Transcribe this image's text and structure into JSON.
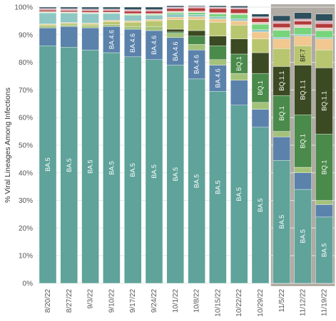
{
  "chart_data": {
    "type": "bar",
    "stacked": true,
    "title": "",
    "xlabel": "",
    "ylabel": "% Viral Lineages Among Infections",
    "ylim": [
      0,
      100
    ],
    "yticks": [
      "0%",
      "10%",
      "20%",
      "30%",
      "40%",
      "50%",
      "60%",
      "70%",
      "80%",
      "90%",
      "100%"
    ],
    "grid": true,
    "legend": "none",
    "categories": [
      "8/20/22",
      "8/27/22",
      "9/3/22",
      "9/10/22",
      "9/17/22",
      "9/24/22",
      "10/1/22",
      "10/8/22",
      "10/15/22",
      "10/22/22",
      "10/29/22",
      "11/5/22",
      "11/12/22",
      "11/19/22"
    ],
    "highlighted_categories": [
      "11/5/22",
      "11/12/22",
      "11/19/22"
    ],
    "highlight_color": "#b0aba4",
    "series": [
      {
        "name": "BA.5",
        "color": "#5fa39a",
        "text_color": "#ffffff",
        "values": [
          86.0,
          85.5,
          84.5,
          83.5,
          82.0,
          81.0,
          79.0,
          74.0,
          69.5,
          64.5,
          56.5,
          44.5,
          34.0,
          24.0
        ]
      },
      {
        "name": "BA.4.6",
        "color": "#5b82ab",
        "text_color": "#ffffff",
        "values": [
          6.5,
          7.5,
          8.0,
          9.5,
          10.0,
          10.5,
          10.0,
          10.5,
          9.5,
          9.0,
          6.5,
          8.5,
          6.0,
          4.5
        ]
      },
      {
        "name": "",
        "color": "#a4c27a",
        "text_color": "#ffffff",
        "values": [
          0.6,
          0.5,
          0.6,
          0.7,
          1.0,
          1.5,
          1.5,
          2.0,
          2.0,
          2.5,
          2.5,
          2.0,
          2.0,
          1.5
        ]
      },
      {
        "name": "BQ.1",
        "color": "#4a8a4a",
        "text_color": "#ffffff",
        "values": [
          0,
          0,
          0,
          0,
          0,
          0,
          0.5,
          3.0,
          5.0,
          7.0,
          10.5,
          13.0,
          19.0,
          24.0
        ]
      },
      {
        "name": "BQ.1.1",
        "color": "#3b4a22",
        "text_color": "#ffffff",
        "values": [
          0,
          0,
          0,
          0,
          0,
          0,
          1.0,
          2.0,
          3.5,
          5.5,
          7.5,
          10.5,
          18.0,
          24.0
        ]
      },
      {
        "name": "BF.7",
        "color": "#b9c670",
        "text_color": "#222222",
        "values": [
          0.5,
          0.6,
          0.7,
          1.0,
          1.5,
          2.0,
          3.5,
          4.0,
          5.0,
          5.0,
          5.0,
          6.5,
          7.0,
          6.5
        ]
      },
      {
        "name": "",
        "color": "#f0c890",
        "text_color": "#222222",
        "values": [
          0.3,
          0.3,
          0.4,
          0.5,
          0.5,
          0.5,
          0.8,
          1.0,
          1.2,
          1.5,
          2.5,
          3.5,
          3.5,
          4.0
        ]
      },
      {
        "name": "",
        "color": "#8fc7c4",
        "text_color": "#222222",
        "values": [
          4.0,
          3.4,
          3.4,
          2.5,
          2.0,
          1.5,
          1.2,
          0.8,
          0.8,
          0.8,
          0.8,
          0.6,
          0.6,
          0.5
        ]
      },
      {
        "name": "",
        "color": "#76d47a",
        "text_color": "#222222",
        "values": [
          0.2,
          0.2,
          0.2,
          0.2,
          0.3,
          0.3,
          0.5,
          0.7,
          1.0,
          1.5,
          2.0,
          2.5,
          2.5,
          2.5
        ]
      },
      {
        "name": "",
        "color": "#e6d0c4",
        "text_color": "#222222",
        "values": [
          0.3,
          0.3,
          0.3,
          0.3,
          0.4,
          0.4,
          0.5,
          0.5,
          0.5,
          0.5,
          0.7,
          1.0,
          1.0,
          1.0
        ]
      },
      {
        "name": "",
        "color": "#b33b3b",
        "text_color": "#ffffff",
        "values": [
          0.5,
          0.5,
          0.6,
          0.6,
          0.8,
          0.8,
          1.0,
          1.2,
          1.5,
          1.5,
          1.5,
          1.5,
          1.3,
          1.5
        ]
      },
      {
        "name": "",
        "color": "#d9b0bd",
        "text_color": "#222222",
        "values": [
          0.6,
          0.6,
          0.6,
          0.5,
          0.6,
          0.6,
          0.5,
          0.5,
          0.5,
          0.5,
          0.5,
          0.8,
          0.8,
          1.0
        ]
      },
      {
        "name": "",
        "color": "#2e4f5c",
        "text_color": "#ffffff",
        "values": [
          0.5,
          0.6,
          0.7,
          0.7,
          0.9,
          0.9,
          0.5,
          0.3,
          0.5,
          0.6,
          1.0,
          2.0,
          2.3,
          2.5
        ]
      }
    ]
  }
}
